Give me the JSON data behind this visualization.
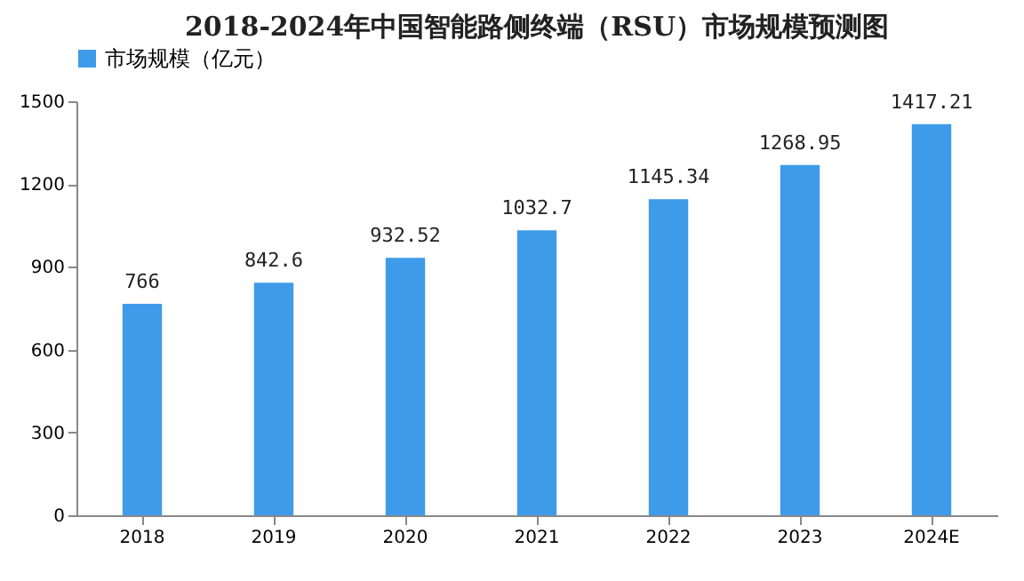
{
  "chart_data": {
    "type": "bar",
    "title": "2018-2024年中国智能路侧终端（RSU）市场规模预测图",
    "categories": [
      "2018",
      "2019",
      "2020",
      "2021",
      "2022",
      "2023",
      "2024E"
    ],
    "series": [
      {
        "name": "市场规模（亿元）",
        "color": "#3d9be9",
        "values": [
          766,
          842.6,
          932.52,
          1032.7,
          1145.34,
          1268.95,
          1417.21
        ]
      }
    ],
    "ylim": [
      0,
      1500
    ],
    "yticks": [
      0,
      300,
      600,
      900,
      1200,
      1500
    ],
    "grid": false,
    "legend": "top",
    "data_labels": true
  }
}
